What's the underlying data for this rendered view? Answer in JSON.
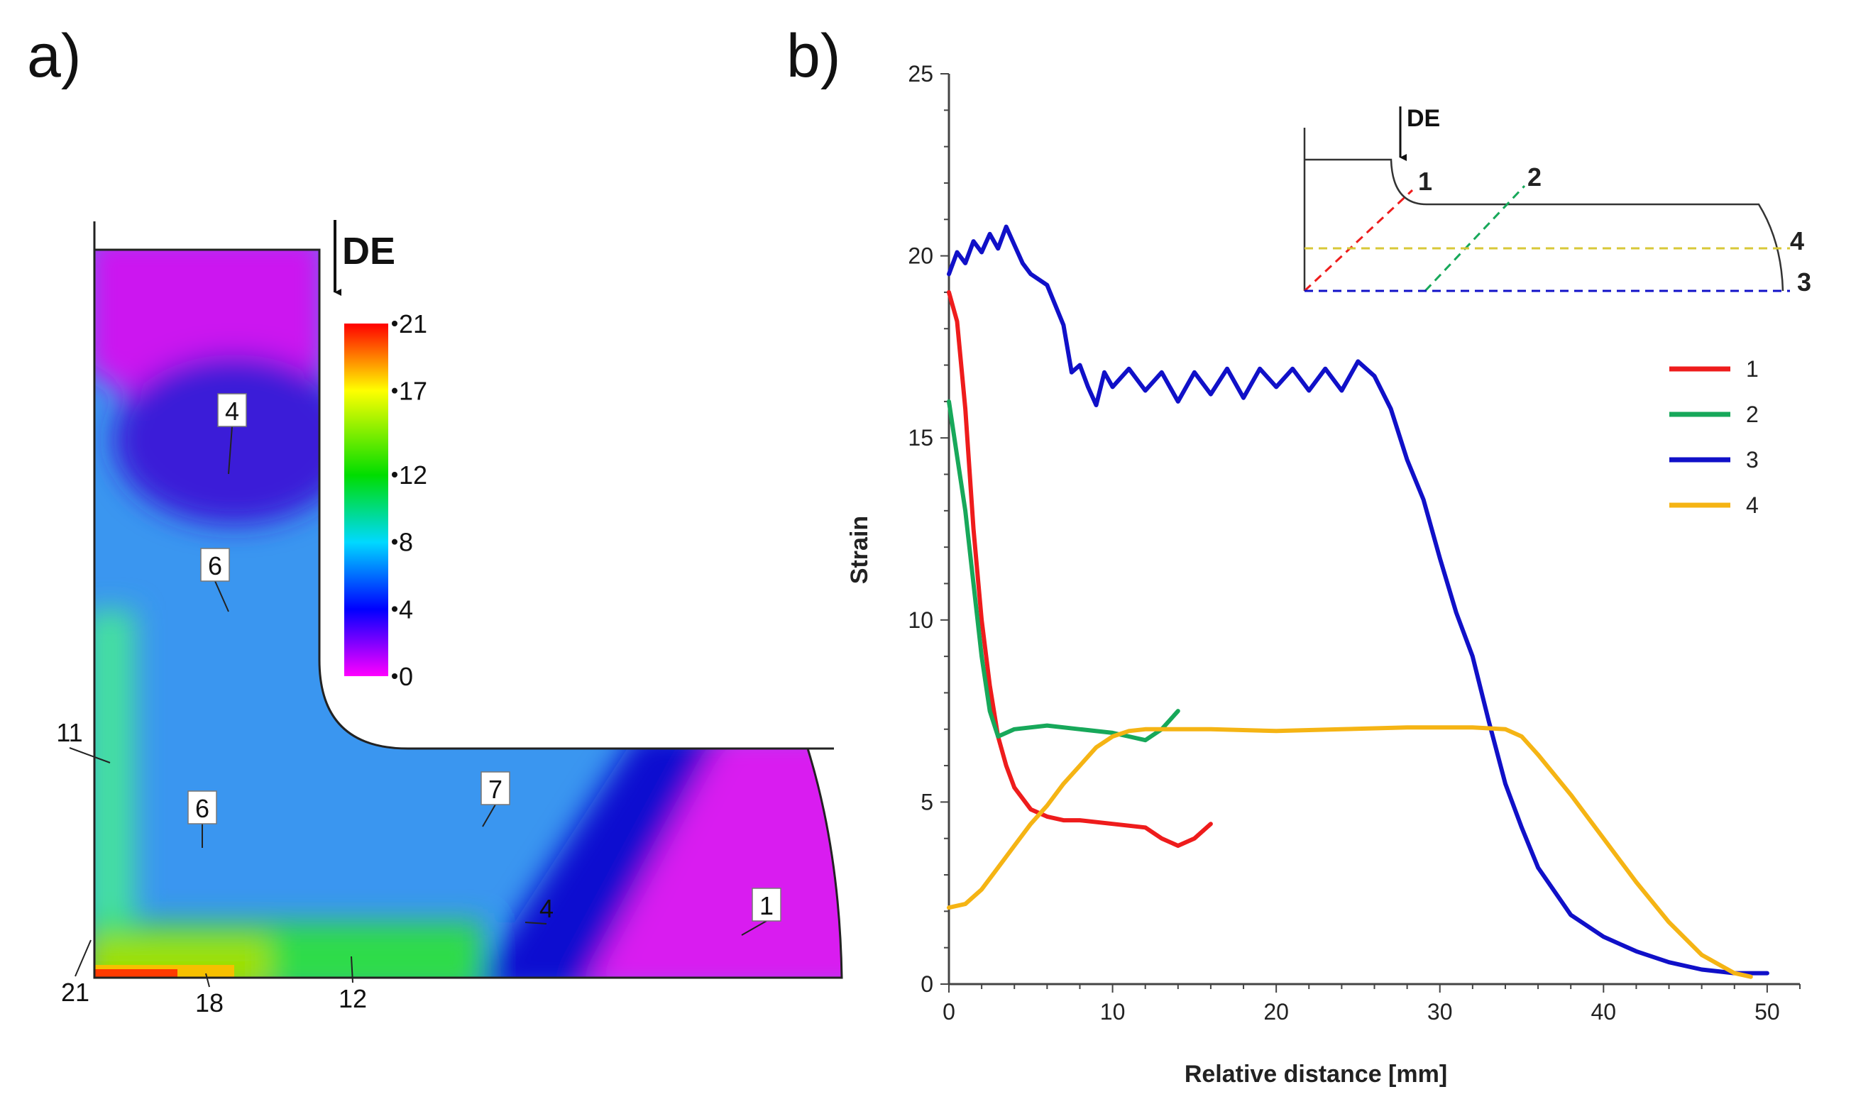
{
  "panel_a": {
    "label": "a)",
    "direction_label": "DE",
    "colorbar": {
      "ticks": [
        "21",
        "17",
        "12",
        "8",
        "4",
        "0"
      ],
      "tick_values": [
        21,
        17,
        12,
        8,
        4,
        0
      ],
      "colors": [
        "#ff00ff",
        "#0000ff",
        "#00d9ff",
        "#00dd00",
        "#ffff00",
        "#ff0000"
      ]
    },
    "callouts": [
      "4",
      "6",
      "6",
      "7",
      "4",
      "1",
      "11",
      "21",
      "18",
      "12"
    ]
  },
  "panel_b": {
    "label": "b)",
    "inset": {
      "direction_label": "DE",
      "line_labels": [
        "1",
        "2",
        "4",
        "3"
      ]
    }
  },
  "chart_data": {
    "type": "line",
    "title": "",
    "xlabel": "Relative distance [mm]",
    "ylabel": "Strain",
    "xlim": [
      0,
      52
    ],
    "ylim": [
      0,
      25
    ],
    "xticks": [
      0,
      10,
      20,
      30,
      40,
      50
    ],
    "yticks": [
      0,
      5,
      10,
      15,
      20,
      25
    ],
    "grid": false,
    "legend_position": "right",
    "series": [
      {
        "name": "1",
        "color": "#ee1c1c",
        "x": [
          0,
          0.5,
          1,
          1.5,
          2,
          2.5,
          3,
          3.5,
          4,
          5,
          6,
          7,
          8,
          10,
          12,
          13,
          14,
          15,
          16
        ],
        "y": [
          19,
          18.2,
          15.8,
          12.5,
          10,
          8.2,
          6.8,
          6.0,
          5.4,
          4.8,
          4.6,
          4.5,
          4.5,
          4.4,
          4.3,
          4.0,
          3.8,
          4.0,
          4.4
        ]
      },
      {
        "name": "2",
        "color": "#17a85a",
        "x": [
          0,
          0.5,
          1,
          1.5,
          2,
          2.5,
          3,
          3.5,
          4,
          6,
          8,
          10,
          11,
          12,
          13,
          14
        ],
        "y": [
          16,
          14.5,
          13,
          11,
          9,
          7.5,
          6.8,
          6.9,
          7.0,
          7.1,
          7.0,
          6.9,
          6.8,
          6.7,
          7.0,
          7.5
        ]
      },
      {
        "name": "3",
        "color": "#1010c8",
        "x": [
          0,
          0.5,
          1,
          1.5,
          2,
          2.5,
          3,
          3.5,
          4,
          4.5,
          5,
          6,
          7,
          7.5,
          8,
          8.5,
          9,
          9.5,
          10,
          11,
          12,
          13,
          14,
          15,
          16,
          17,
          18,
          19,
          20,
          21,
          22,
          23,
          24,
          25,
          26,
          27,
          28,
          29,
          30,
          31,
          32,
          33,
          34,
          35,
          36,
          38,
          40,
          42,
          44,
          46,
          48,
          50
        ],
        "y": [
          19.5,
          20.1,
          19.8,
          20.4,
          20.1,
          20.6,
          20.2,
          20.8,
          20.3,
          19.8,
          19.5,
          19.2,
          18.1,
          16.8,
          17.0,
          16.4,
          15.9,
          16.8,
          16.4,
          16.9,
          16.3,
          16.8,
          16.0,
          16.8,
          16.2,
          16.9,
          16.1,
          16.9,
          16.4,
          16.9,
          16.3,
          16.9,
          16.3,
          17.1,
          16.7,
          15.8,
          14.4,
          13.3,
          11.7,
          10.2,
          9.0,
          7.2,
          5.5,
          4.3,
          3.2,
          1.9,
          1.3,
          0.9,
          0.6,
          0.4,
          0.3,
          0.3
        ]
      },
      {
        "name": "4",
        "color": "#f5b414",
        "x": [
          0,
          1,
          2,
          3,
          4,
          5,
          6,
          7,
          8,
          9,
          10,
          11,
          12,
          14,
          16,
          20,
          24,
          28,
          32,
          34,
          35,
          36,
          38,
          40,
          42,
          44,
          46,
          48,
          49
        ],
        "y": [
          2.1,
          2.2,
          2.6,
          3.2,
          3.8,
          4.4,
          4.9,
          5.5,
          6.0,
          6.5,
          6.8,
          6.95,
          7.0,
          7.0,
          7.0,
          6.95,
          7.0,
          7.05,
          7.05,
          7.0,
          6.8,
          6.3,
          5.2,
          4.0,
          2.8,
          1.7,
          0.8,
          0.3,
          0.2
        ]
      }
    ]
  }
}
